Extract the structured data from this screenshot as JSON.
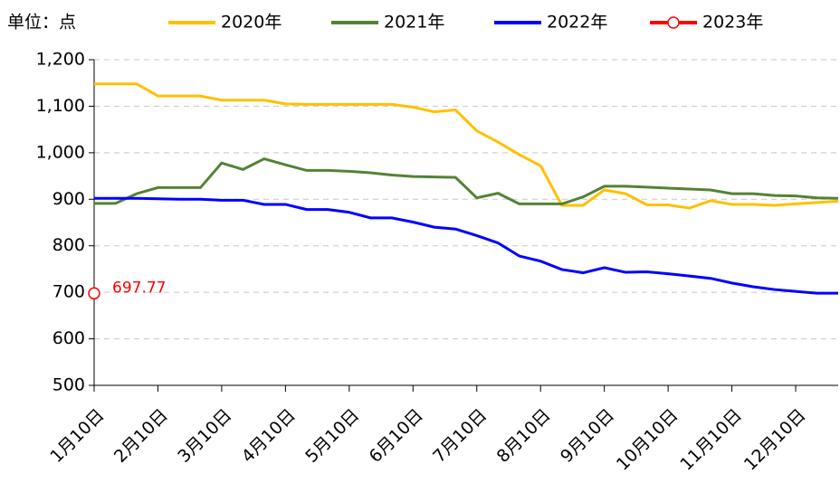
{
  "chart_data": {
    "type": "line",
    "unit_label": "单位：点",
    "categories": [
      "1月10日",
      null,
      null,
      "2月10日",
      null,
      null,
      "3月10日",
      null,
      null,
      "4月10日",
      null,
      null,
      "5月10日",
      null,
      null,
      "6月10日",
      null,
      null,
      "7月10日",
      null,
      null,
      "8月10日",
      null,
      null,
      "9月10日",
      null,
      null,
      "10月10日",
      null,
      null,
      "11月10日",
      null,
      null,
      "12月10日",
      null,
      null
    ],
    "series": [
      {
        "name": "2020年",
        "color": "#ffc000",
        "values": [
          1148,
          1148,
          1148,
          1122,
          1122,
          1122,
          1113,
          1113,
          1113,
          1105,
          1104,
          1104,
          1104,
          1104,
          1104,
          1098,
          1088,
          1092,
          1047,
          1023,
          996,
          972,
          887,
          887,
          920,
          912,
          888,
          888,
          881,
          897,
          889,
          889,
          887,
          890,
          893,
          896
        ]
      },
      {
        "name": "2021年",
        "color": "#548235",
        "values": [
          891,
          891,
          912,
          925,
          925,
          925,
          978,
          964,
          987,
          974,
          962,
          962,
          960,
          957,
          952,
          949,
          948,
          947,
          903,
          913,
          890,
          890,
          890,
          905,
          928,
          928,
          926,
          924,
          922,
          920,
          912,
          912,
          908,
          907,
          903,
          902
        ]
      },
      {
        "name": "2022年",
        "color": "#0000ff",
        "values": [
          902,
          902,
          902,
          901,
          900,
          900,
          898,
          898,
          889,
          889,
          878,
          878,
          872,
          860,
          860,
          851,
          840,
          836,
          822,
          806,
          778,
          767,
          749,
          742,
          753,
          743,
          744,
          740,
          735,
          730,
          720,
          712,
          706,
          702,
          698,
          698
        ]
      },
      {
        "name": "2023年",
        "color": "#ff0000",
        "marker": "circle",
        "values": [
          697.77,
          null,
          null,
          null,
          null,
          null,
          null,
          null,
          null,
          null,
          null,
          null,
          null,
          null,
          null,
          null,
          null,
          null,
          null,
          null,
          null,
          null,
          null,
          null,
          null,
          null,
          null,
          null,
          null,
          null,
          null,
          null,
          null,
          null,
          null,
          null
        ]
      }
    ],
    "ylim": [
      500,
      1200
    ],
    "yticks": [
      500,
      600,
      700,
      800,
      900,
      {
        "value": 1000,
        "label": "1,000"
      },
      {
        "value": 1100,
        "label": "1,100"
      },
      {
        "value": 1200,
        "label": "1,200"
      }
    ],
    "grid": true,
    "legend": "top"
  }
}
